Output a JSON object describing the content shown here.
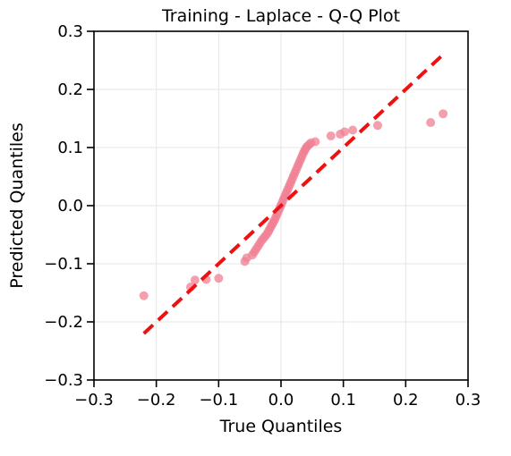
{
  "chart_data": {
    "type": "scatter",
    "title": "Training - Laplace - Q-Q Plot",
    "xlabel": "True Quantiles",
    "ylabel": "Predicted Quantiles",
    "xlim": [
      -0.3,
      0.3
    ],
    "ylim": [
      -0.3,
      0.3
    ],
    "xticks": [
      -0.3,
      -0.2,
      -0.1,
      0.0,
      0.1,
      0.2,
      0.3
    ],
    "yticks": [
      -0.3,
      -0.2,
      -0.1,
      0.0,
      0.1,
      0.2,
      0.3
    ],
    "xtick_labels": [
      "−0.3",
      "−0.2",
      "−0.1",
      "0.0",
      "0.1",
      "0.2",
      "0.3"
    ],
    "ytick_labels": [
      "−0.3",
      "−0.2",
      "−0.1",
      "0.0",
      "0.1",
      "0.2",
      "0.3"
    ],
    "grid": true,
    "point_color": "#f07f93",
    "line_color": "#ee1111",
    "reference_line": {
      "x": [
        -0.22,
        0.26
      ],
      "y": [
        -0.22,
        0.26
      ],
      "style": "dashed"
    },
    "points": {
      "x": [
        -0.22,
        -0.145,
        -0.138,
        -0.12,
        -0.1,
        -0.058,
        -0.055,
        -0.046,
        -0.043,
        -0.04,
        -0.037,
        -0.034,
        -0.031,
        -0.028,
        -0.025,
        -0.022,
        -0.02,
        -0.018,
        -0.016,
        -0.014,
        -0.012,
        -0.01,
        -0.008,
        -0.006,
        -0.004,
        -0.002,
        0.0,
        0.002,
        0.004,
        0.006,
        0.008,
        0.01,
        0.012,
        0.014,
        0.016,
        0.018,
        0.02,
        0.022,
        0.024,
        0.026,
        0.028,
        0.03,
        0.032,
        0.034,
        0.036,
        0.038,
        0.04,
        0.042,
        0.045,
        0.048,
        0.055,
        0.08,
        0.095,
        0.102,
        0.115,
        0.155,
        0.24,
        0.26
      ],
      "y": [
        -0.155,
        -0.14,
        -0.128,
        -0.127,
        -0.125,
        -0.096,
        -0.09,
        -0.085,
        -0.08,
        -0.075,
        -0.07,
        -0.065,
        -0.06,
        -0.056,
        -0.052,
        -0.048,
        -0.044,
        -0.04,
        -0.036,
        -0.032,
        -0.028,
        -0.024,
        -0.019,
        -0.014,
        -0.009,
        -0.004,
        0.001,
        0.006,
        0.011,
        0.016,
        0.021,
        0.026,
        0.031,
        0.036,
        0.041,
        0.046,
        0.051,
        0.056,
        0.061,
        0.066,
        0.071,
        0.076,
        0.081,
        0.086,
        0.091,
        0.095,
        0.099,
        0.102,
        0.105,
        0.108,
        0.11,
        0.12,
        0.123,
        0.127,
        0.13,
        0.138,
        0.143,
        0.158
      ]
    }
  }
}
